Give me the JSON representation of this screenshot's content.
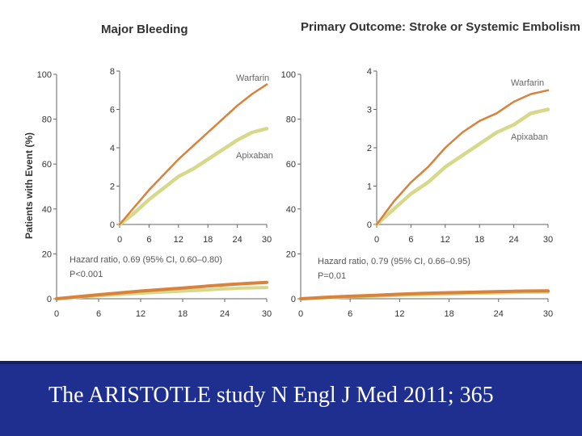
{
  "chart_data": [
    {
      "type": "line",
      "title": "Major Bleeding",
      "ylabel": "Patients with Event (%)",
      "xlabel": "",
      "ylim": [
        0,
        100
      ],
      "xlim": [
        0,
        30
      ],
      "y_ticks": [
        "0",
        "20",
        "40",
        "60",
        "80",
        "100"
      ],
      "x_ticks": [
        "0",
        "6",
        "12",
        "18",
        "24",
        "30"
      ],
      "annotation": [
        "Hazard ratio, 0.69 (95% CI, 0.60–0.80)",
        "P<0.001"
      ],
      "series": [
        {
          "name": "Warfarin",
          "color": "#d9823b",
          "x": [
            0,
            3,
            6,
            9,
            12,
            15,
            18,
            21,
            24,
            27,
            30
          ],
          "y": [
            0,
            0.9,
            1.8,
            2.6,
            3.4,
            4.1,
            4.8,
            5.5,
            6.2,
            6.8,
            7.3
          ]
        },
        {
          "name": "Apixaban",
          "color": "#d6d98a",
          "x": [
            0,
            3,
            6,
            9,
            12,
            15,
            18,
            21,
            24,
            27,
            30
          ],
          "y": [
            0,
            0.6,
            1.3,
            1.9,
            2.5,
            2.9,
            3.4,
            3.9,
            4.4,
            4.8,
            5.0
          ]
        }
      ],
      "inset": {
        "ylim": [
          0,
          8
        ],
        "xlim": [
          0,
          30
        ],
        "y_ticks": [
          "0",
          "2",
          "4",
          "6",
          "8"
        ],
        "x_ticks": [
          "0",
          "6",
          "12",
          "18",
          "24",
          "30"
        ]
      }
    },
    {
      "type": "line",
      "title": "Primary Outcome: Stroke or Systemic Embolism",
      "xlabel": "",
      "ylabel": "",
      "ylim": [
        0,
        100
      ],
      "xlim": [
        0,
        30
      ],
      "y_ticks": [
        "0",
        "20",
        "40",
        "60",
        "80",
        "100"
      ],
      "x_ticks": [
        "0",
        "6",
        "12",
        "18",
        "24",
        "30"
      ],
      "annotation": [
        "Hazard ratio, 0.79 (95% CI, 0.66–0.95)",
        "P=0.01"
      ],
      "series": [
        {
          "name": "Warfarin",
          "color": "#d9823b",
          "x": [
            0,
            3,
            6,
            9,
            12,
            15,
            18,
            21,
            24,
            27,
            30
          ],
          "y": [
            0,
            0.6,
            1.1,
            1.5,
            2.0,
            2.4,
            2.7,
            2.9,
            3.2,
            3.4,
            3.5
          ]
        },
        {
          "name": "Apixaban",
          "color": "#d6d98a",
          "x": [
            0,
            3,
            6,
            9,
            12,
            15,
            18,
            21,
            24,
            27,
            30
          ],
          "y": [
            0,
            0.4,
            0.8,
            1.1,
            1.5,
            1.8,
            2.1,
            2.4,
            2.6,
            2.9,
            3.0
          ]
        }
      ],
      "inset": {
        "ylim": [
          0,
          4
        ],
        "xlim": [
          0,
          30
        ],
        "y_ticks": [
          "0",
          "1",
          "2",
          "3",
          "4"
        ],
        "x_ticks": [
          "0",
          "6",
          "12",
          "18",
          "24",
          "30"
        ]
      }
    }
  ],
  "footer": {
    "citation": "The ARISTOTLE study  N Engl J Med 2011; 365"
  }
}
